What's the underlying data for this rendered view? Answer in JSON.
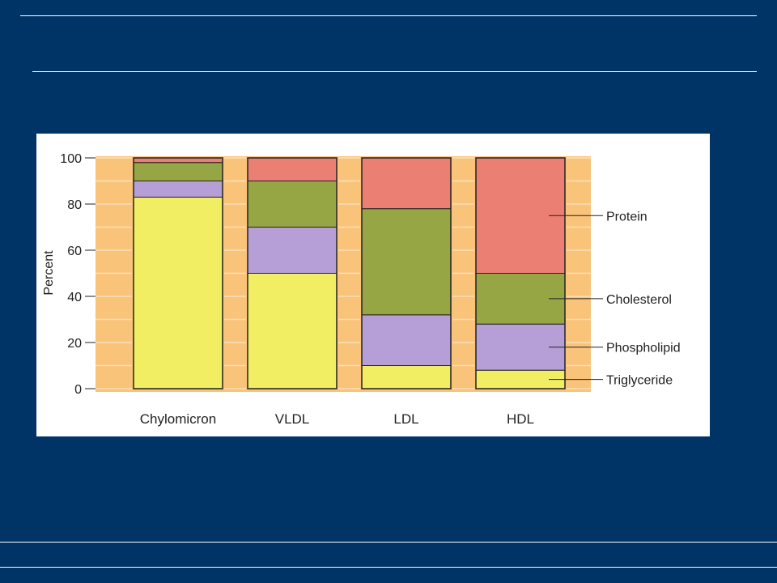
{
  "colors": {
    "background": "#003366",
    "panel": "#ffffff",
    "band": "#f9c37a",
    "band_line": "#fbe0b8",
    "Triglyceride": "#f2ee63",
    "Phospholipid": "#b59fd6",
    "Cholesterol": "#97a645",
    "Protein": "#ec7f74"
  },
  "chart_data": {
    "type": "bar",
    "stacked": true,
    "categories": [
      "Chylomicron",
      "VLDL",
      "LDL",
      "HDL"
    ],
    "series": [
      {
        "name": "Triglyceride",
        "values": [
          83,
          50,
          10,
          8
        ]
      },
      {
        "name": "Phospholipid",
        "values": [
          7,
          20,
          22,
          20
        ]
      },
      {
        "name": "Cholesterol",
        "values": [
          8,
          20,
          46,
          22
        ]
      },
      {
        "name": "Protein",
        "values": [
          2,
          10,
          22,
          50
        ]
      }
    ],
    "ylabel": "Percent",
    "ylim": [
      0,
      100
    ],
    "yticks": [
      "0",
      "20",
      "40",
      "60",
      "80",
      "100"
    ],
    "legend_placement": "right, labelled callouts on HDL bar",
    "grid": true
  }
}
